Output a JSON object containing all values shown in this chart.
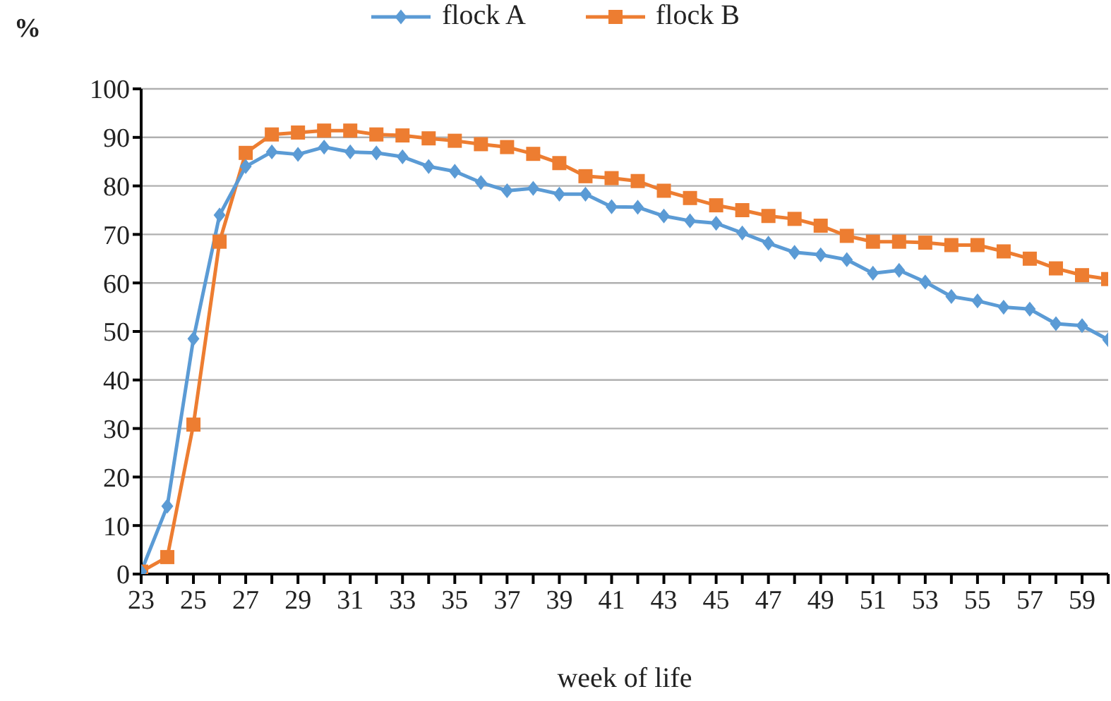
{
  "chart_data": {
    "type": "line",
    "xlabel": "week of life",
    "ylabel": "%",
    "categories": [
      "23",
      null,
      "25",
      null,
      "27",
      null,
      "29",
      null,
      "31",
      null,
      "33",
      null,
      "35",
      null,
      "37",
      null,
      "39",
      null,
      "41",
      null,
      "43",
      null,
      "45",
      null,
      "47",
      null,
      "49",
      null,
      "51",
      null,
      "53",
      null,
      "55",
      null,
      "57",
      null,
      "59",
      null
    ],
    "series": [
      {
        "name": "flock A",
        "color": "#5b9bd5",
        "marker": "diamond",
        "values": [
          0.5,
          14,
          48.5,
          74,
          84,
          87,
          86.5,
          88,
          87,
          86.8,
          86,
          84,
          83,
          80.7,
          79,
          79.5,
          78.3,
          78.3,
          75.7,
          75.6,
          73.8,
          72.8,
          72.3,
          70.3,
          68.2,
          66.3,
          65.8,
          64.8,
          62,
          62.6,
          60.2,
          57.2,
          56.3,
          55,
          54.6,
          51.6,
          51.2,
          48.3
        ]
      },
      {
        "name": "flock B",
        "color": "#ed7d31",
        "marker": "square",
        "values": [
          0.5,
          3.5,
          30.8,
          68.5,
          86.8,
          90.6,
          91,
          91.4,
          91.4,
          90.6,
          90.4,
          89.8,
          89.3,
          88.6,
          88,
          86.6,
          84.7,
          82,
          81.6,
          81,
          79,
          77.5,
          76,
          75,
          73.8,
          73.2,
          71.8,
          69.7,
          68.5,
          68.5,
          68.3,
          67.8,
          67.8,
          66.5,
          65,
          63,
          61.6,
          60.8
        ]
      }
    ],
    "ylim": [
      0,
      100
    ],
    "yticks": [
      0,
      10,
      20,
      30,
      40,
      50,
      60,
      70,
      80,
      90,
      100
    ],
    "grid": "y",
    "legend": "top",
    "line_style": "solid"
  }
}
